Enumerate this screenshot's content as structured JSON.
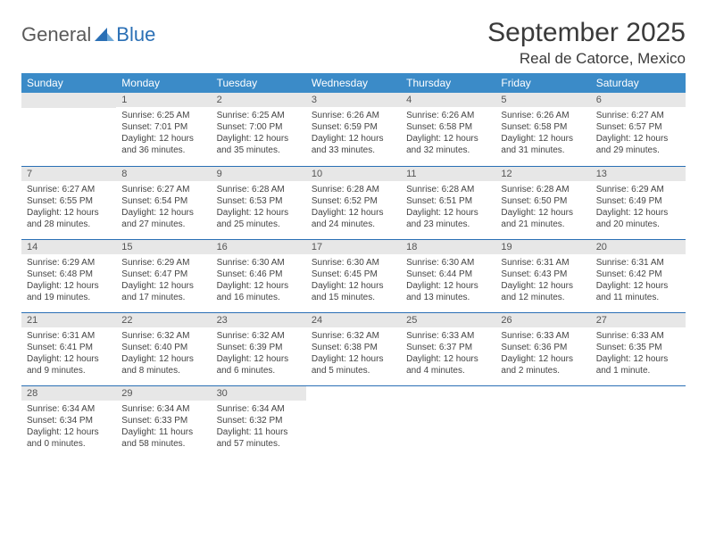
{
  "logo": {
    "part1": "General",
    "part2": "Blue"
  },
  "title": "September 2025",
  "location": "Real de Catorce, Mexico",
  "header_bg": "#3b8bc8",
  "daybar_bg": "#e7e7e7",
  "rule_color": "#2a6fb5",
  "weekdays": [
    "Sunday",
    "Monday",
    "Tuesday",
    "Wednesday",
    "Thursday",
    "Friday",
    "Saturday"
  ],
  "weeks": [
    [
      null,
      {
        "n": "1",
        "sr": "Sunrise: 6:25 AM",
        "ss": "Sunset: 7:01 PM",
        "d1": "Daylight: 12 hours",
        "d2": "and 36 minutes."
      },
      {
        "n": "2",
        "sr": "Sunrise: 6:25 AM",
        "ss": "Sunset: 7:00 PM",
        "d1": "Daylight: 12 hours",
        "d2": "and 35 minutes."
      },
      {
        "n": "3",
        "sr": "Sunrise: 6:26 AM",
        "ss": "Sunset: 6:59 PM",
        "d1": "Daylight: 12 hours",
        "d2": "and 33 minutes."
      },
      {
        "n": "4",
        "sr": "Sunrise: 6:26 AM",
        "ss": "Sunset: 6:58 PM",
        "d1": "Daylight: 12 hours",
        "d2": "and 32 minutes."
      },
      {
        "n": "5",
        "sr": "Sunrise: 6:26 AM",
        "ss": "Sunset: 6:58 PM",
        "d1": "Daylight: 12 hours",
        "d2": "and 31 minutes."
      },
      {
        "n": "6",
        "sr": "Sunrise: 6:27 AM",
        "ss": "Sunset: 6:57 PM",
        "d1": "Daylight: 12 hours",
        "d2": "and 29 minutes."
      }
    ],
    [
      {
        "n": "7",
        "sr": "Sunrise: 6:27 AM",
        "ss": "Sunset: 6:55 PM",
        "d1": "Daylight: 12 hours",
        "d2": "and 28 minutes."
      },
      {
        "n": "8",
        "sr": "Sunrise: 6:27 AM",
        "ss": "Sunset: 6:54 PM",
        "d1": "Daylight: 12 hours",
        "d2": "and 27 minutes."
      },
      {
        "n": "9",
        "sr": "Sunrise: 6:28 AM",
        "ss": "Sunset: 6:53 PM",
        "d1": "Daylight: 12 hours",
        "d2": "and 25 minutes."
      },
      {
        "n": "10",
        "sr": "Sunrise: 6:28 AM",
        "ss": "Sunset: 6:52 PM",
        "d1": "Daylight: 12 hours",
        "d2": "and 24 minutes."
      },
      {
        "n": "11",
        "sr": "Sunrise: 6:28 AM",
        "ss": "Sunset: 6:51 PM",
        "d1": "Daylight: 12 hours",
        "d2": "and 23 minutes."
      },
      {
        "n": "12",
        "sr": "Sunrise: 6:28 AM",
        "ss": "Sunset: 6:50 PM",
        "d1": "Daylight: 12 hours",
        "d2": "and 21 minutes."
      },
      {
        "n": "13",
        "sr": "Sunrise: 6:29 AM",
        "ss": "Sunset: 6:49 PM",
        "d1": "Daylight: 12 hours",
        "d2": "and 20 minutes."
      }
    ],
    [
      {
        "n": "14",
        "sr": "Sunrise: 6:29 AM",
        "ss": "Sunset: 6:48 PM",
        "d1": "Daylight: 12 hours",
        "d2": "and 19 minutes."
      },
      {
        "n": "15",
        "sr": "Sunrise: 6:29 AM",
        "ss": "Sunset: 6:47 PM",
        "d1": "Daylight: 12 hours",
        "d2": "and 17 minutes."
      },
      {
        "n": "16",
        "sr": "Sunrise: 6:30 AM",
        "ss": "Sunset: 6:46 PM",
        "d1": "Daylight: 12 hours",
        "d2": "and 16 minutes."
      },
      {
        "n": "17",
        "sr": "Sunrise: 6:30 AM",
        "ss": "Sunset: 6:45 PM",
        "d1": "Daylight: 12 hours",
        "d2": "and 15 minutes."
      },
      {
        "n": "18",
        "sr": "Sunrise: 6:30 AM",
        "ss": "Sunset: 6:44 PM",
        "d1": "Daylight: 12 hours",
        "d2": "and 13 minutes."
      },
      {
        "n": "19",
        "sr": "Sunrise: 6:31 AM",
        "ss": "Sunset: 6:43 PM",
        "d1": "Daylight: 12 hours",
        "d2": "and 12 minutes."
      },
      {
        "n": "20",
        "sr": "Sunrise: 6:31 AM",
        "ss": "Sunset: 6:42 PM",
        "d1": "Daylight: 12 hours",
        "d2": "and 11 minutes."
      }
    ],
    [
      {
        "n": "21",
        "sr": "Sunrise: 6:31 AM",
        "ss": "Sunset: 6:41 PM",
        "d1": "Daylight: 12 hours",
        "d2": "and 9 minutes."
      },
      {
        "n": "22",
        "sr": "Sunrise: 6:32 AM",
        "ss": "Sunset: 6:40 PM",
        "d1": "Daylight: 12 hours",
        "d2": "and 8 minutes."
      },
      {
        "n": "23",
        "sr": "Sunrise: 6:32 AM",
        "ss": "Sunset: 6:39 PM",
        "d1": "Daylight: 12 hours",
        "d2": "and 6 minutes."
      },
      {
        "n": "24",
        "sr": "Sunrise: 6:32 AM",
        "ss": "Sunset: 6:38 PM",
        "d1": "Daylight: 12 hours",
        "d2": "and 5 minutes."
      },
      {
        "n": "25",
        "sr": "Sunrise: 6:33 AM",
        "ss": "Sunset: 6:37 PM",
        "d1": "Daylight: 12 hours",
        "d2": "and 4 minutes."
      },
      {
        "n": "26",
        "sr": "Sunrise: 6:33 AM",
        "ss": "Sunset: 6:36 PM",
        "d1": "Daylight: 12 hours",
        "d2": "and 2 minutes."
      },
      {
        "n": "27",
        "sr": "Sunrise: 6:33 AM",
        "ss": "Sunset: 6:35 PM",
        "d1": "Daylight: 12 hours",
        "d2": "and 1 minute."
      }
    ],
    [
      {
        "n": "28",
        "sr": "Sunrise: 6:34 AM",
        "ss": "Sunset: 6:34 PM",
        "d1": "Daylight: 12 hours",
        "d2": "and 0 minutes."
      },
      {
        "n": "29",
        "sr": "Sunrise: 6:34 AM",
        "ss": "Sunset: 6:33 PM",
        "d1": "Daylight: 11 hours",
        "d2": "and 58 minutes."
      },
      {
        "n": "30",
        "sr": "Sunrise: 6:34 AM",
        "ss": "Sunset: 6:32 PM",
        "d1": "Daylight: 11 hours",
        "d2": "and 57 minutes."
      },
      null,
      null,
      null,
      null
    ]
  ]
}
